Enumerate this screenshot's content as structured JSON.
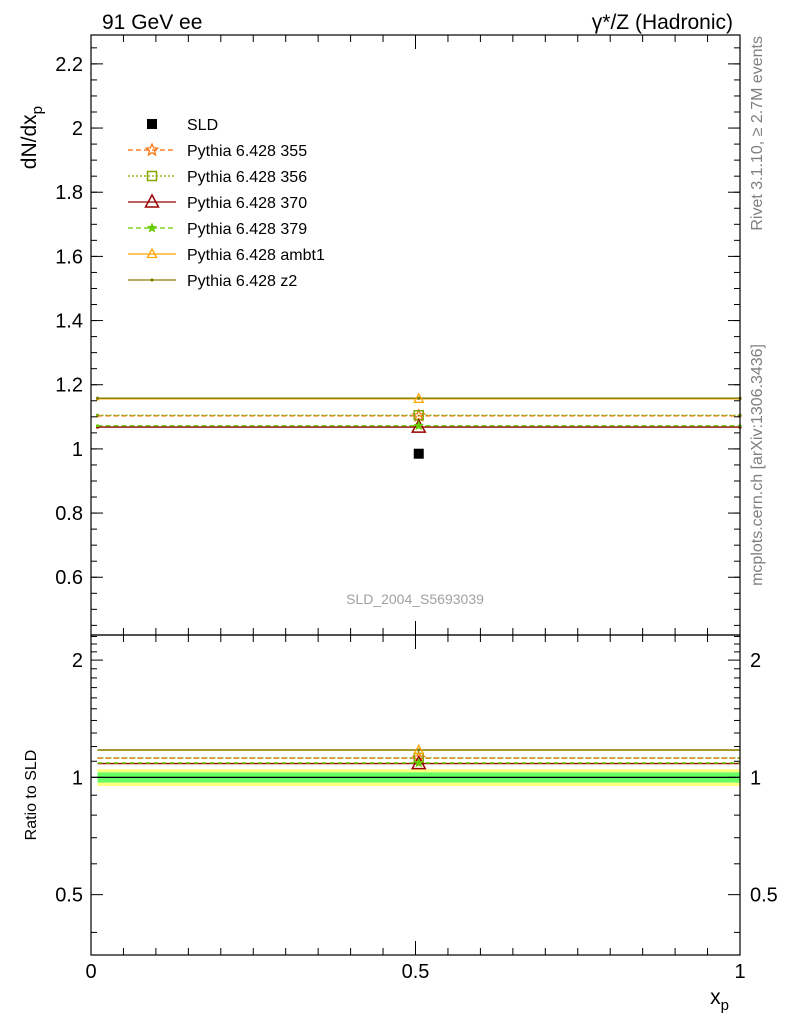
{
  "header": {
    "left": "91 GeV ee",
    "right": "γ*/Z (Hadronic)"
  },
  "side_labels": {
    "rivet": "Rivet 3.1.10, ≥ 2.7M events",
    "mcplots": "mcplots.cern.ch [arXiv:1306.3436]"
  },
  "watermark": "SLD_2004_S5693039",
  "colors": {
    "data": "#000000",
    "p355": "#ff6a00",
    "p356": "#7fa800",
    "p370": "#990000",
    "p379": "#66cc00",
    "ambt1": "#ffa500",
    "z2": "#808000",
    "band_inner": "#66ff66",
    "band_outer": "#ffff80"
  },
  "chart_data": [
    {
      "type": "scatter",
      "ylabel": "dN/dx",
      "ylabel_sub": "p",
      "xlim": [
        0,
        1
      ],
      "ylim": [
        0.42,
        2.29
      ],
      "yticks": [
        0.6,
        0.8,
        1,
        1.2,
        1.4,
        1.6,
        1.8,
        2,
        2.2
      ],
      "ytick_labels": [
        "0.6",
        "0.8",
        "1",
        "1.2",
        "1.4",
        "1.6",
        "1.8",
        "2",
        "2.2"
      ],
      "legend_placement": "top-left",
      "series": [
        {
          "name": "SLD",
          "marker": "square",
          "x": [
            0.505
          ],
          "y": [
            0.985
          ],
          "xlo": [
            0.505
          ],
          "xhi": [
            0.505
          ]
        },
        {
          "name": "Pythia 6.428 355",
          "marker": "star",
          "line": "dashed",
          "x": [
            0.505
          ],
          "y": [
            1.103
          ],
          "xlo": [
            0.01
          ],
          "xhi": [
            1.0
          ]
        },
        {
          "name": "Pythia 6.428 356",
          "marker": "open-square",
          "line": "dotted",
          "x": [
            0.505
          ],
          "y": [
            1.105
          ],
          "xlo": [
            0.01
          ],
          "xhi": [
            1.0
          ]
        },
        {
          "name": "Pythia 6.428 370",
          "marker": "open-triangle",
          "line": "solid",
          "x": [
            0.505
          ],
          "y": [
            1.068
          ],
          "xlo": [
            0.01
          ],
          "xhi": [
            1.0
          ]
        },
        {
          "name": "Pythia 6.428 379",
          "marker": "small-star",
          "line": "dashed",
          "x": [
            0.505
          ],
          "y": [
            1.072
          ],
          "xlo": [
            0.01
          ],
          "xhi": [
            1.0
          ]
        },
        {
          "name": "Pythia 6.428 ambt1",
          "marker": "small-open-triangle",
          "line": "solid",
          "x": [
            0.505
          ],
          "y": [
            1.156
          ],
          "xlo": [
            0.01
          ],
          "xhi": [
            1.0
          ]
        },
        {
          "name": "Pythia 6.428 z2",
          "marker": "dot",
          "line": "solid",
          "x": [
            0.505
          ],
          "y": [
            1.158
          ],
          "xlo": [
            0.01
          ],
          "xhi": [
            1.0
          ]
        }
      ]
    },
    {
      "type": "scatter",
      "ylabel": "Ratio to SLD",
      "xlabel": "x",
      "xlabel_sub": "p",
      "xlim": [
        0,
        1
      ],
      "ylim": [
        0.35,
        2.32
      ],
      "yticks": [
        0.5,
        1,
        2
      ],
      "ytick_labels": [
        "0.5",
        "1",
        "2"
      ],
      "xticks": [
        0,
        0.5,
        1
      ],
      "xtick_labels": [
        "0",
        "0.5",
        "1"
      ],
      "bands": {
        "inner": [
          0.97,
          1.03
        ],
        "outer": [
          0.95,
          1.05
        ],
        "x": [
          0.01,
          1.0
        ]
      },
      "series": [
        {
          "name": "Pythia 6.428 355",
          "y": [
            1.12
          ]
        },
        {
          "name": "Pythia 6.428 356",
          "y": [
            1.122
          ]
        },
        {
          "name": "Pythia 6.428 370",
          "y": [
            1.085
          ]
        },
        {
          "name": "Pythia 6.428 379",
          "y": [
            1.089
          ]
        },
        {
          "name": "Pythia 6.428 ambt1",
          "y": [
            1.174
          ]
        },
        {
          "name": "Pythia 6.428 z2",
          "y": [
            1.176
          ]
        }
      ]
    }
  ]
}
